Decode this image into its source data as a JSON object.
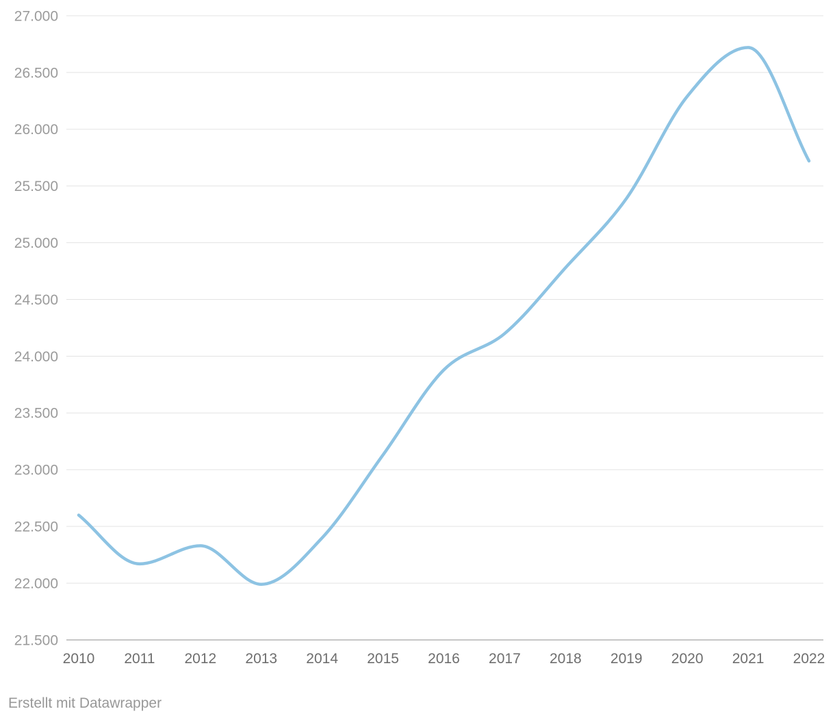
{
  "footer": {
    "attribution": "Erstellt mit Datawrapper"
  },
  "chart_data": {
    "type": "line",
    "title": "",
    "xlabel": "",
    "ylabel": "",
    "x": [
      2010,
      2011,
      2012,
      2013,
      2014,
      2015,
      2016,
      2017,
      2018,
      2019,
      2020,
      2021,
      2022
    ],
    "x_tick_labels": [
      "2010",
      "2011",
      "2012",
      "2013",
      "2014",
      "2015",
      "2016",
      "2017",
      "2018",
      "2019",
      "2020",
      "2021",
      "2022"
    ],
    "values": [
      22600,
      22170,
      22330,
      21990,
      22400,
      23130,
      23880,
      24200,
      24780,
      25390,
      26290,
      26720,
      25720
    ],
    "y_ticks": [
      {
        "value": 21500,
        "label": "21.500"
      },
      {
        "value": 22000,
        "label": "22.000"
      },
      {
        "value": 22500,
        "label": "22.500"
      },
      {
        "value": 23000,
        "label": "23.000"
      },
      {
        "value": 23500,
        "label": "23.500"
      },
      {
        "value": 24000,
        "label": "24.000"
      },
      {
        "value": 24500,
        "label": "24.500"
      },
      {
        "value": 25000,
        "label": "25.000"
      },
      {
        "value": 25500,
        "label": "25.500"
      },
      {
        "value": 26000,
        "label": "26.000"
      },
      {
        "value": 26500,
        "label": "26.500"
      },
      {
        "value": 27000,
        "label": "27.000"
      }
    ],
    "ylim": [
      21500,
      27000
    ],
    "xlim": [
      2010,
      2022
    ],
    "grid": true,
    "legend": "none",
    "curve": "monotone",
    "colors": {
      "line": "#8dc3e3",
      "grid": "#e3e3e3",
      "baseline_grid": "#c6c6c6",
      "y_tick_text": "#9b9b9b",
      "x_tick_text": "#6e6e6e",
      "background": "#ffffff"
    }
  }
}
